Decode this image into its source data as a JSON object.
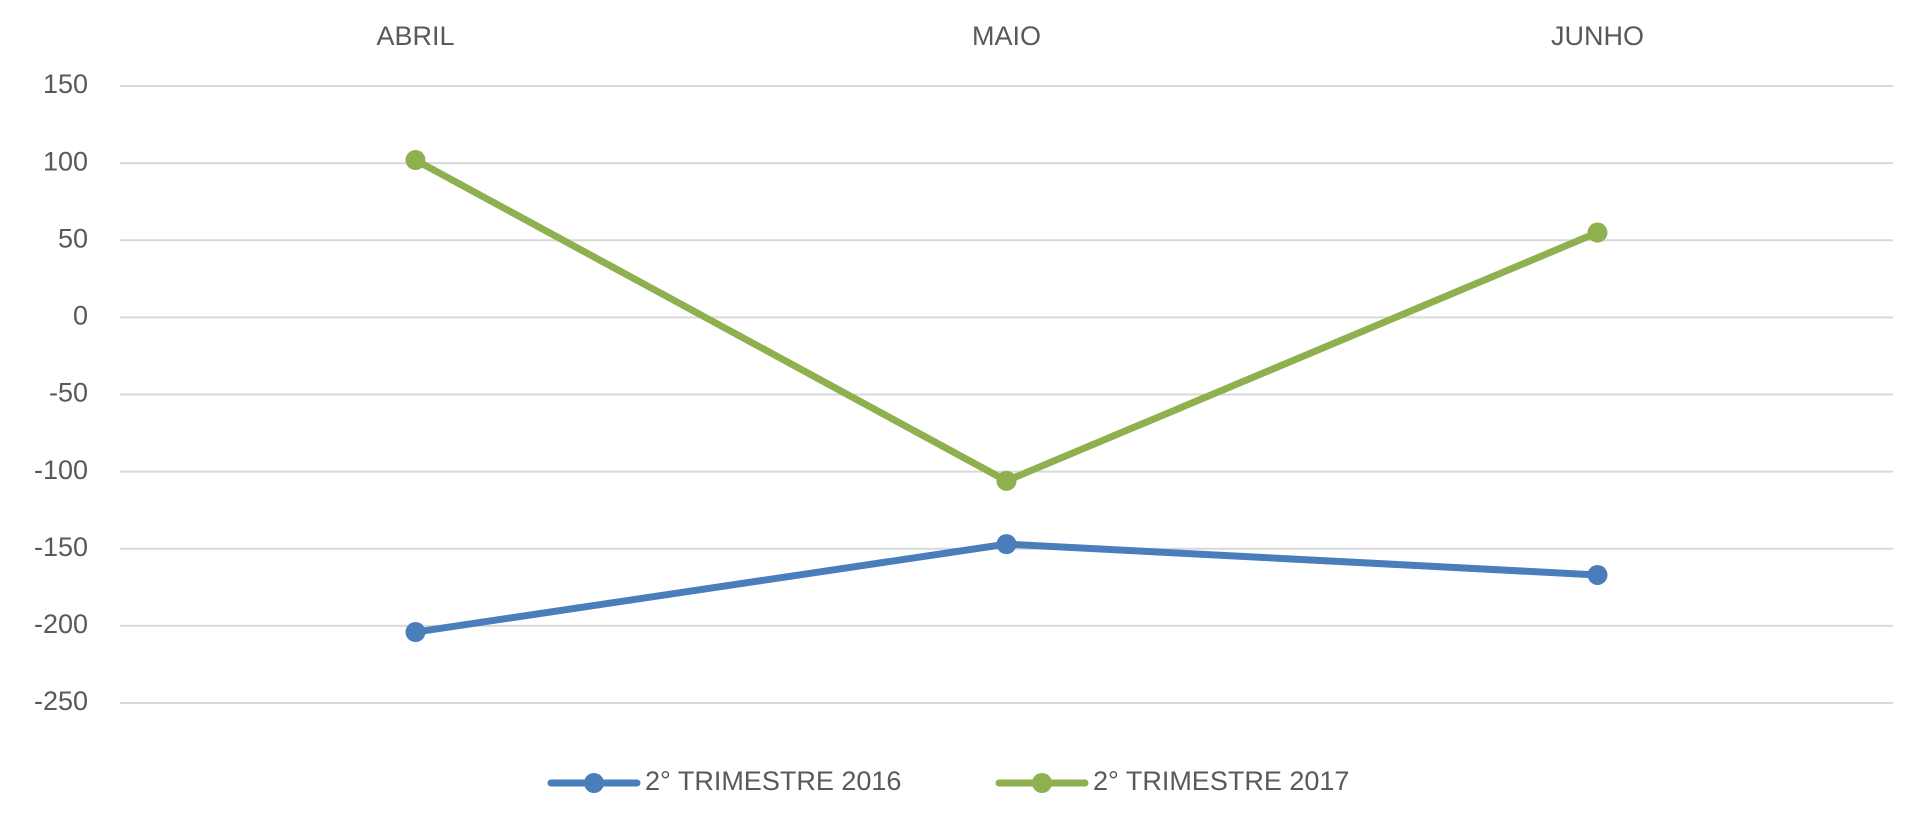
{
  "chart_data": {
    "type": "line",
    "categories": [
      "ABRIL",
      "MAIO",
      "JUNHO"
    ],
    "series": [
      {
        "name": "2° TRIMESTRE 2016",
        "color": "#4a7ebb",
        "values": [
          -204,
          -147,
          -167
        ]
      },
      {
        "name": "2° TRIMESTRE 2017",
        "color": "#8fb04f",
        "values": [
          102,
          -106,
          55
        ]
      }
    ],
    "ylim": [
      -250,
      150
    ],
    "yticks": [
      -250,
      -200,
      -150,
      -100,
      -50,
      0,
      50,
      100,
      150
    ],
    "grid": true,
    "legend": "bottom"
  }
}
